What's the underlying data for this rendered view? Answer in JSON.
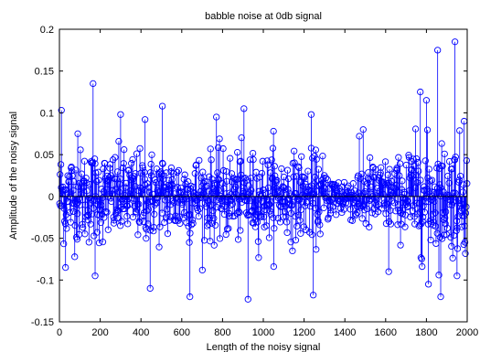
{
  "chart_data": {
    "type": "stem",
    "title": "babble noise at 0db signal",
    "xlabel": "Length of the noisy signal",
    "ylabel": "Amplitude of the noisy signal",
    "xlim": [
      0,
      2000
    ],
    "ylim": [
      -0.15,
      0.2
    ],
    "xticks": [
      0,
      200,
      400,
      600,
      800,
      1000,
      1200,
      1400,
      1600,
      1800,
      2000
    ],
    "yticks": [
      -0.15,
      -0.1,
      -0.05,
      0,
      0.05,
      0.1,
      0.15,
      0.2
    ],
    "xtick_labels": [
      "0",
      "200",
      "400",
      "600",
      "800",
      "1000",
      "1200",
      "1400",
      "1600",
      "1800",
      "2000"
    ],
    "ytick_labels": [
      "-0.15",
      "-0.1",
      "-0.05",
      "0",
      "0.05",
      "0.1",
      "0.15",
      "0.2"
    ],
    "grid": false,
    "marker": "open-circle",
    "series_color": "#0000ff",
    "n_samples": 2000,
    "notable_points": [
      {
        "x": 10,
        "y": 0.103
      },
      {
        "x": 30,
        "y": -0.085
      },
      {
        "x": 90,
        "y": 0.075
      },
      {
        "x": 165,
        "y": 0.135
      },
      {
        "x": 175,
        "y": -0.095
      },
      {
        "x": 300,
        "y": 0.098
      },
      {
        "x": 420,
        "y": 0.092
      },
      {
        "x": 445,
        "y": -0.11
      },
      {
        "x": 505,
        "y": 0.108
      },
      {
        "x": 640,
        "y": -0.12
      },
      {
        "x": 770,
        "y": 0.095
      },
      {
        "x": 905,
        "y": 0.105
      },
      {
        "x": 925,
        "y": -0.123
      },
      {
        "x": 1050,
        "y": 0.078
      },
      {
        "x": 1235,
        "y": 0.098
      },
      {
        "x": 1245,
        "y": -0.118
      },
      {
        "x": 1490,
        "y": 0.08
      },
      {
        "x": 1615,
        "y": -0.09
      },
      {
        "x": 1770,
        "y": 0.125
      },
      {
        "x": 1800,
        "y": 0.115
      },
      {
        "x": 1810,
        "y": -0.105
      },
      {
        "x": 1855,
        "y": 0.175
      },
      {
        "x": 1870,
        "y": -0.12
      },
      {
        "x": 1940,
        "y": 0.185
      },
      {
        "x": 1950,
        "y": -0.095
      },
      {
        "x": 1985,
        "y": 0.09
      }
    ],
    "envelope_note_segments": [
      {
        "x_from": 0,
        "x_to": 200,
        "amp": 0.05
      },
      {
        "x_from": 200,
        "x_to": 600,
        "amp": 0.048
      },
      {
        "x_from": 600,
        "x_to": 1000,
        "amp": 0.046
      },
      {
        "x_from": 1000,
        "x_to": 1300,
        "amp": 0.045
      },
      {
        "x_from": 1300,
        "x_to": 1450,
        "amp": 0.025
      },
      {
        "x_from": 1450,
        "x_to": 1700,
        "amp": 0.04
      },
      {
        "x_from": 1700,
        "x_to": 2000,
        "amp": 0.06
      }
    ]
  }
}
